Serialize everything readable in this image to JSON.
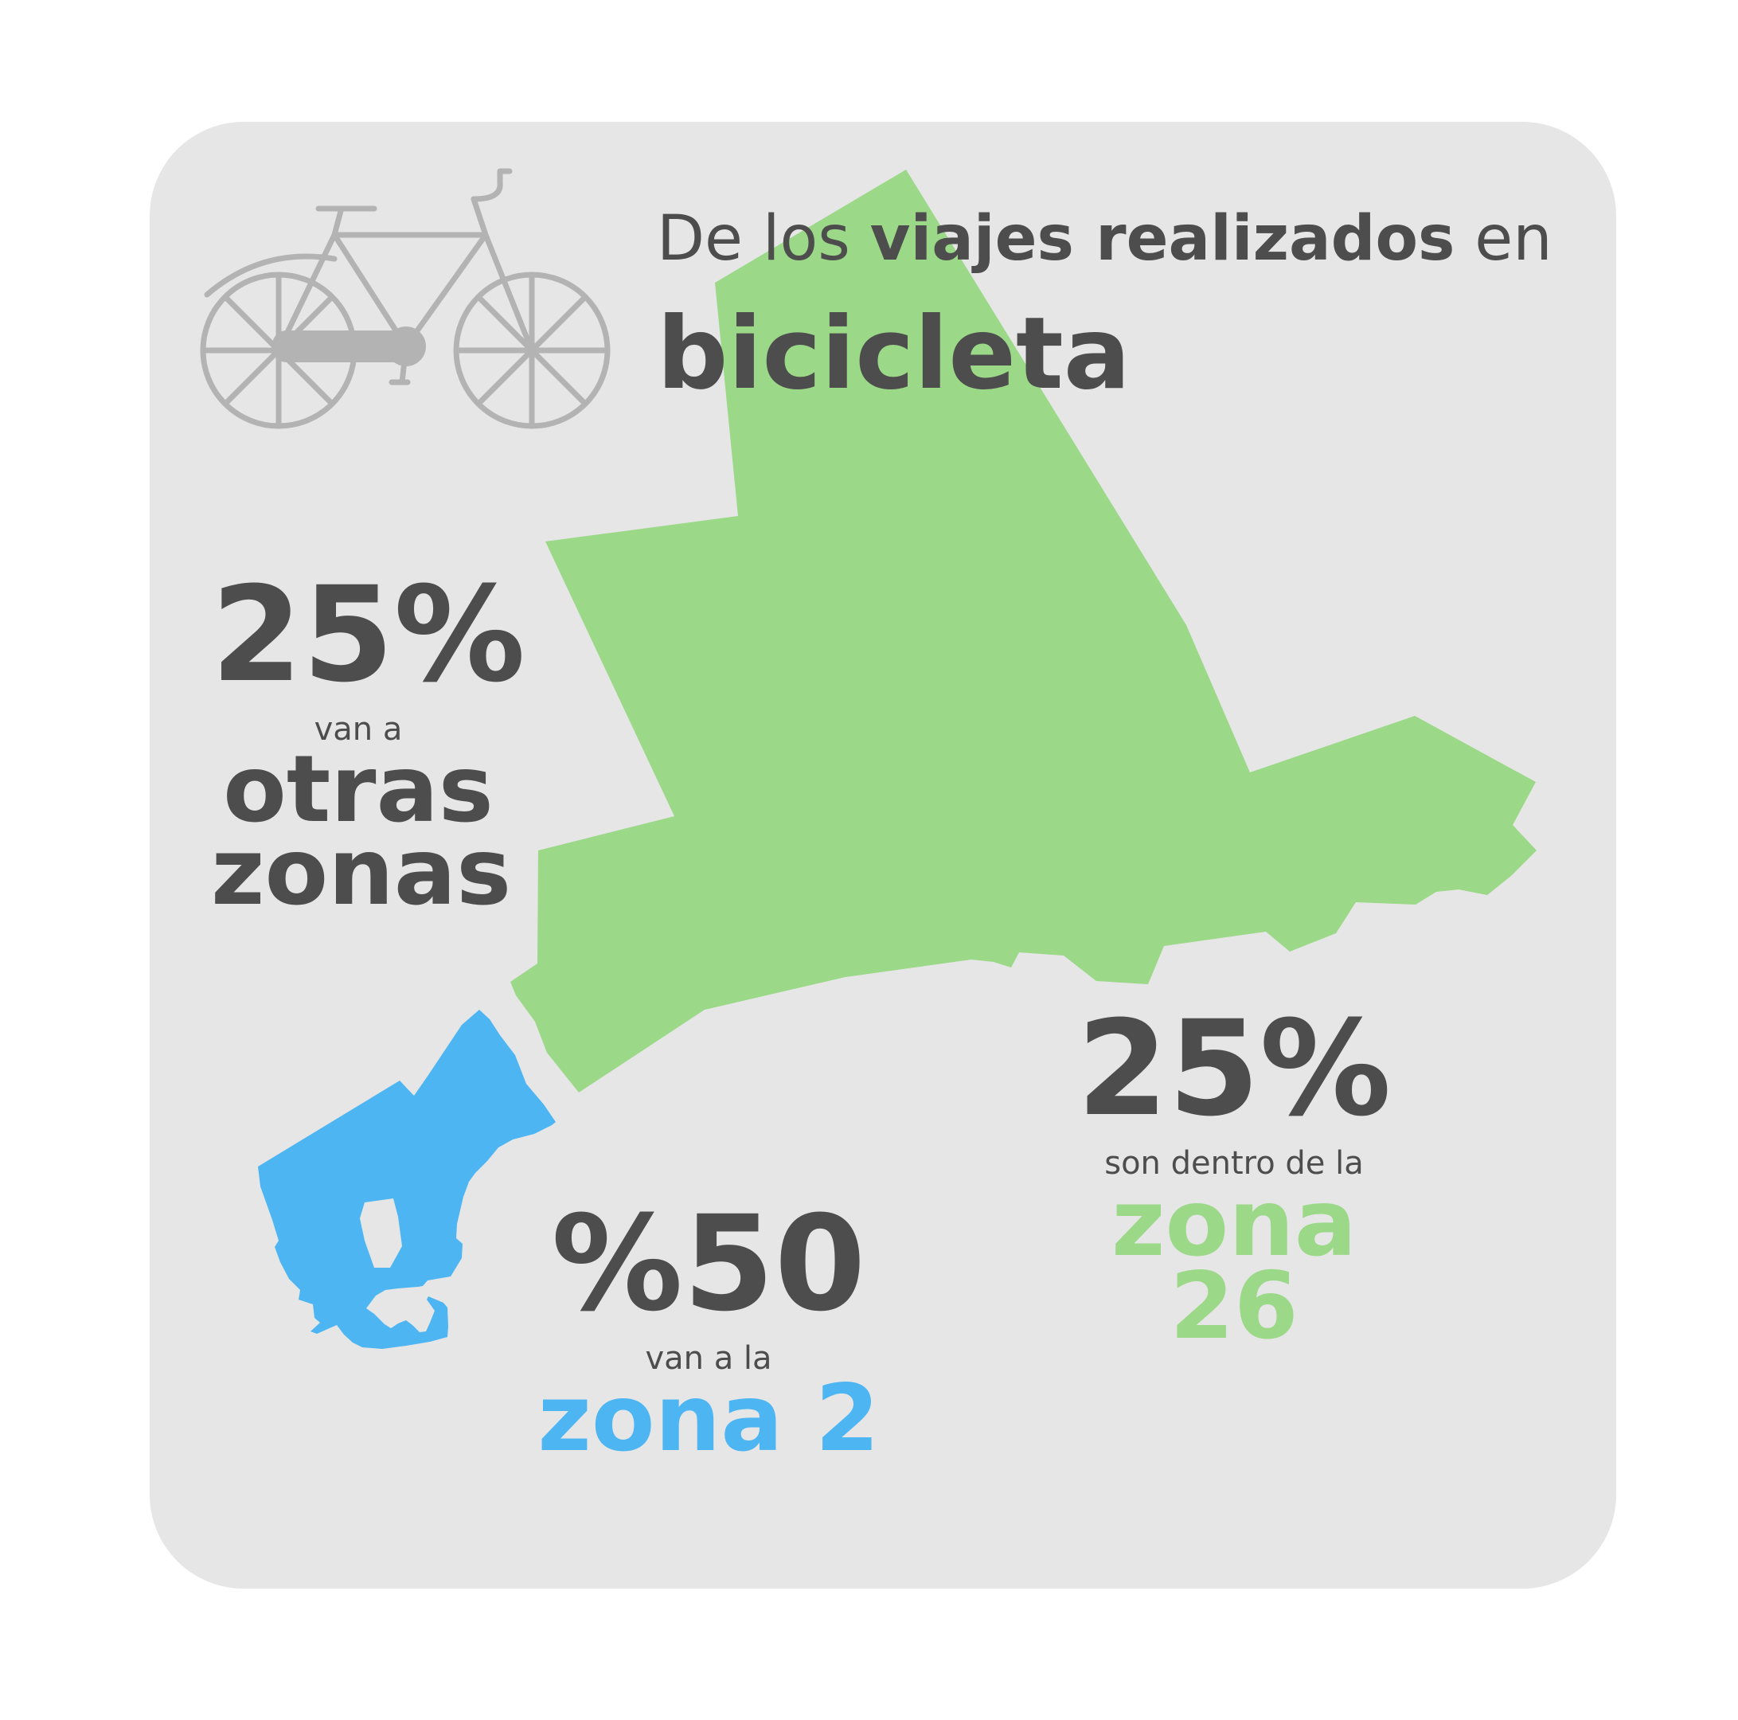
{
  "title": {
    "prefix": "De los",
    "bold": "viajes realizados",
    "suffix": "en",
    "mode": "bicicleta"
  },
  "stats": {
    "other_zones": {
      "percent": "25%",
      "text": "van a",
      "zone_line1": "otras",
      "zone_line2": "zonas"
    },
    "zone26": {
      "percent": "25%",
      "text": "son dentro de la",
      "zone": "zona 26"
    },
    "zone2": {
      "percent": "%50",
      "text": "van a la",
      "zone": "zona 2"
    }
  },
  "colors": {
    "card_bg": "#e6e6e6",
    "text": "#4d4d4d",
    "zone26": "#9bd888",
    "zone2": "#4db6f2",
    "icon": "#b3b3b3"
  },
  "icons": [
    "bicycle-icon"
  ]
}
